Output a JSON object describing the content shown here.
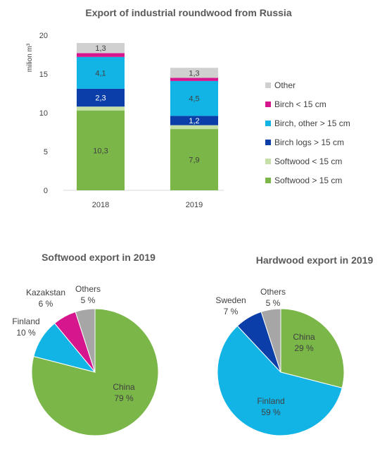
{
  "chart_data": [
    {
      "type": "bar",
      "stacked": true,
      "title": "Export of industrial roundwood from Russia",
      "ylabel": "milion m³",
      "ylim": [
        0,
        20
      ],
      "yticks": [
        "0",
        "5",
        "10",
        "15",
        "20"
      ],
      "categories": [
        "2018",
        "2019"
      ],
      "legend_position": "right",
      "series": [
        {
          "name": "Softwood > 15 cm",
          "color": "#7ab648",
          "values": [
            10.3,
            7.9
          ],
          "labels": [
            "10,3",
            "7,9"
          ],
          "label_color": "#404040"
        },
        {
          "name": "Softwood < 15 cm",
          "color": "#c5e0a5",
          "values": [
            0.5,
            0.5
          ],
          "labels": [
            "",
            ""
          ],
          "label_color": "#404040"
        },
        {
          "name": "Birch logs > 15 cm",
          "color": "#0b3ea8",
          "values": [
            2.3,
            1.2
          ],
          "labels": [
            "2,3",
            "1,2"
          ],
          "label_color": "#ffffff"
        },
        {
          "name": "Birch, other > 15 cm",
          "color": "#12b4e6",
          "values": [
            4.1,
            4.5
          ],
          "labels": [
            "4,1",
            "4,5"
          ],
          "label_color": "#404040"
        },
        {
          "name": "Birch < 15 cm",
          "color": "#d6168c",
          "values": [
            0.5,
            0.4
          ],
          "labels": [
            "",
            ""
          ],
          "label_color": "#404040"
        },
        {
          "name": "Other",
          "color": "#d0d0d0",
          "values": [
            1.3,
            1.3
          ],
          "labels": [
            "1,3",
            "1,3"
          ],
          "label_color": "#404040"
        }
      ]
    },
    {
      "type": "pie",
      "title": "Softwood export in 2019",
      "slices": [
        {
          "name": "China",
          "value": 79,
          "label": "79 %",
          "color": "#7ab648",
          "label_color": "#404040"
        },
        {
          "name": "Finland",
          "value": 10,
          "label": "10 %",
          "color": "#12b4e6",
          "label_color": "#404040"
        },
        {
          "name": "Kazakstan",
          "value": 6,
          "label": "6 %",
          "color": "#d6168c",
          "label_color": "#404040"
        },
        {
          "name": "Others",
          "value": 5,
          "label": "5 %",
          "color": "#a6a6a6",
          "label_color": "#404040"
        }
      ]
    },
    {
      "type": "pie",
      "title": "Hardwood export in 2019",
      "slices": [
        {
          "name": "China",
          "value": 29,
          "label": "29 %",
          "color": "#7ab648",
          "label_color": "#404040"
        },
        {
          "name": "Finland",
          "value": 59,
          "label": "59 %",
          "color": "#12b4e6",
          "label_color": "#404040"
        },
        {
          "name": "Sweden",
          "value": 7,
          "label": "7 %",
          "color": "#0b3ea8",
          "label_color": "#404040"
        },
        {
          "name": "Others",
          "value": 5,
          "label": "5 %",
          "color": "#a6a6a6",
          "label_color": "#404040"
        }
      ]
    }
  ]
}
